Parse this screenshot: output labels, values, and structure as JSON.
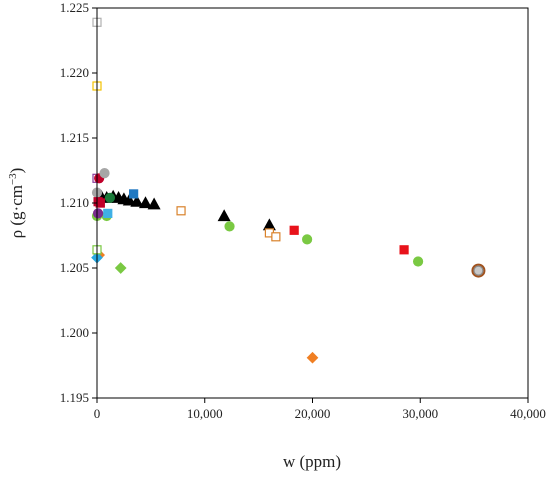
{
  "chart_data": {
    "type": "scatter",
    "xlabel": "w (ppm)",
    "ylabel_parts": {
      "main": "ρ (g·cm",
      "sup": "−3",
      "close": ")"
    },
    "xlim": [
      0,
      40000
    ],
    "ylim": [
      1.195,
      1.225
    ],
    "x_ticks": [
      0,
      10000,
      20000,
      30000,
      40000
    ],
    "x_tick_labels": [
      "0",
      "10,000",
      "20,000",
      "30,000",
      "40,000"
    ],
    "y_ticks": [
      1.195,
      1.2,
      1.205,
      1.21,
      1.215,
      1.22,
      1.225
    ],
    "y_tick_labels": [
      "1.195",
      "1.200",
      "1.205",
      "1.210",
      "1.215",
      "1.220",
      "1.225"
    ],
    "grid": false,
    "series": [
      {
        "marker": "triangle",
        "fill": "#000000",
        "stroke": "#000000",
        "points": [
          [
            400,
            1.2105
          ],
          [
            900,
            1.2104
          ],
          [
            1500,
            1.2105
          ],
          [
            2000,
            1.2104
          ],
          [
            2500,
            1.2103
          ],
          [
            3000,
            1.2102
          ],
          [
            3700,
            1.2101
          ],
          [
            4500,
            1.21
          ],
          [
            5300,
            1.2099
          ],
          [
            11800,
            1.209
          ],
          [
            16000,
            1.2083
          ]
        ]
      },
      {
        "marker": "circle",
        "fill": "#7ac943",
        "stroke": "#7ac943",
        "points": [
          [
            0,
            1.209
          ],
          [
            900,
            1.209
          ],
          [
            12300,
            1.2082
          ],
          [
            19500,
            1.2072
          ],
          [
            29800,
            1.2055
          ]
        ]
      },
      {
        "marker": "square",
        "fill": "#e8131b",
        "stroke": "#e8131b",
        "points": [
          [
            300,
            1.21
          ],
          [
            18300,
            1.2079
          ],
          [
            28500,
            1.2064
          ]
        ]
      },
      {
        "marker": "square",
        "fill": "#ffffff",
        "stroke": "#d9822b",
        "points": [
          [
            7800,
            1.2094
          ],
          [
            16000,
            1.2077
          ],
          [
            16600,
            1.2074
          ]
        ]
      },
      {
        "marker": "ring",
        "fill": "#ffffff",
        "stroke": "#a0521e",
        "points": [
          [
            35400,
            1.2048
          ]
        ]
      },
      {
        "marker": "circle",
        "fill": "#c8c8c8",
        "stroke": "#8a8a8a",
        "points": [
          [
            35400,
            1.2048
          ]
        ]
      },
      {
        "marker": "diamond",
        "fill": "#7ac943",
        "stroke": "#7ac943",
        "points": [
          [
            2200,
            1.205
          ]
        ]
      },
      {
        "marker": "diamond",
        "fill": "#f07f23",
        "stroke": "#f07f23",
        "points": [
          [
            20000,
            1.1981
          ],
          [
            200,
            1.206
          ]
        ]
      },
      {
        "marker": "diamond",
        "fill": "#29a8e0",
        "stroke": "#29a8e0",
        "points": [
          [
            0,
            1.2058
          ]
        ]
      },
      {
        "marker": "square",
        "fill": "#ffffff",
        "stroke": "#b0b0b0",
        "points": [
          [
            0,
            1.2239
          ]
        ]
      },
      {
        "marker": "square",
        "fill": "#ffffff",
        "stroke": "#f2c200",
        "points": [
          [
            0,
            1.219
          ]
        ]
      },
      {
        "marker": "square",
        "fill": "#ffffff",
        "stroke": "#8a3a9a",
        "points": [
          [
            0,
            1.2119
          ]
        ]
      },
      {
        "marker": "circle",
        "fill": "#c0002a",
        "stroke": "#c0002a",
        "points": [
          [
            200,
            1.2119
          ]
        ]
      },
      {
        "marker": "circle",
        "fill": "#a6a6a6",
        "stroke": "#a6a6a6",
        "points": [
          [
            700,
            1.2123
          ],
          [
            0,
            1.2108
          ]
        ]
      },
      {
        "marker": "square",
        "fill": "#1f78c1",
        "stroke": "#1f78c1",
        "points": [
          [
            3400,
            1.2107
          ]
        ]
      },
      {
        "marker": "circle",
        "fill": "#1a7a3a",
        "stroke": "#1a7a3a",
        "points": [
          [
            1200,
            1.2104
          ]
        ]
      },
      {
        "marker": "square",
        "fill": "#c0002a",
        "stroke": "#c0002a",
        "points": [
          [
            100,
            1.2101
          ],
          [
            300,
            1.21
          ]
        ]
      },
      {
        "marker": "square",
        "fill": "#3fb0e5",
        "stroke": "#3fb0e5",
        "points": [
          [
            1000,
            1.2092
          ]
        ]
      },
      {
        "marker": "circle",
        "fill": "#7b2d8e",
        "stroke": "#7b2d8e",
        "points": [
          [
            100,
            1.2092
          ]
        ]
      },
      {
        "marker": "square",
        "fill": "#ffffff",
        "stroke": "#7ac943",
        "points": [
          [
            0,
            1.2064
          ]
        ]
      }
    ]
  }
}
